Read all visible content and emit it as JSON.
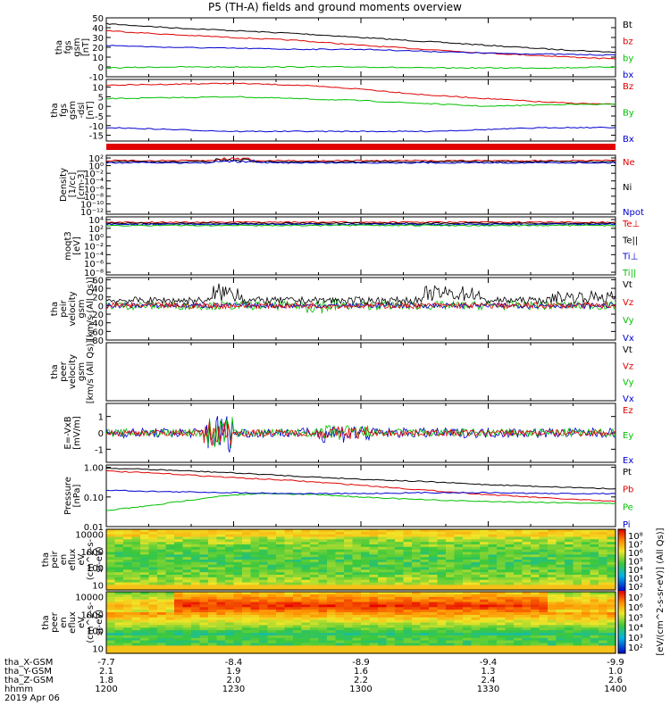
{
  "title": "P5 (TH-A) fields and ground moments overview",
  "colors": {
    "black": "#000000",
    "red": "#e00000",
    "green": "#00c000",
    "blue": "#0000d0"
  },
  "chart_data": [
    {
      "panel": "fgs_gsm",
      "type": "line",
      "ylabel": [
        "tha",
        "fgs",
        "gsm",
        "[nT]"
      ],
      "yticks": [
        "50",
        "40",
        "30",
        "20",
        "10",
        "0",
        "-10"
      ],
      "ylim": [
        -10,
        50
      ],
      "legend": [
        "Bt",
        "bz",
        "by",
        "bx"
      ],
      "series": [
        {
          "name": "Bt",
          "color": "black",
          "x": [
            1200,
            1215,
            1230,
            1245,
            1300,
            1315,
            1330,
            1345,
            1400
          ],
          "y": [
            44,
            40,
            37,
            34,
            30,
            26,
            22,
            18,
            15
          ]
        },
        {
          "name": "bz",
          "color": "red",
          "x": [
            1200,
            1215,
            1230,
            1245,
            1300,
            1315,
            1330,
            1345,
            1400
          ],
          "y": [
            37,
            33,
            30,
            27,
            22,
            18,
            14,
            11,
            8
          ]
        },
        {
          "name": "by",
          "color": "green",
          "x": [
            1200,
            1215,
            1230,
            1245,
            1300,
            1315,
            1330,
            1345,
            1400
          ],
          "y": [
            -1,
            0,
            0,
            0,
            0,
            -1,
            -1,
            -1,
            0
          ]
        },
        {
          "name": "bx",
          "color": "blue",
          "x": [
            1200,
            1215,
            1230,
            1245,
            1300,
            1315,
            1330,
            1345,
            1400
          ],
          "y": [
            22,
            20,
            19,
            18,
            18,
            16,
            14,
            13,
            12
          ]
        }
      ]
    },
    {
      "panel": "fgs_gsm_dsl",
      "type": "line",
      "ylabel": [
        "tha",
        "fgs",
        "gsm",
        "-dsl",
        "[nT]"
      ],
      "yticks": [
        "10",
        "5",
        "0",
        "-5",
        "-10",
        "-15"
      ],
      "ylim": [
        -18,
        14
      ],
      "legend": [
        "Bz",
        "By",
        "Bx"
      ],
      "series": [
        {
          "name": "Bz",
          "color": "red",
          "x": [
            1200,
            1215,
            1230,
            1245,
            1300,
            1315,
            1330,
            1345,
            1400
          ],
          "y": [
            11,
            11.5,
            12,
            11,
            9,
            6,
            4,
            2,
            1
          ]
        },
        {
          "name": "By",
          "color": "green",
          "x": [
            1200,
            1215,
            1230,
            1245,
            1300,
            1315,
            1330,
            1345,
            1400
          ],
          "y": [
            4,
            4.5,
            5,
            4,
            3,
            1.5,
            0,
            1,
            1
          ]
        },
        {
          "name": "Bx",
          "color": "blue",
          "x": [
            1200,
            1215,
            1230,
            1245,
            1300,
            1315,
            1330,
            1345,
            1400
          ],
          "y": [
            -11,
            -12,
            -13,
            -13,
            -13,
            -13,
            -12,
            -11,
            -11
          ]
        }
      ]
    },
    {
      "panel": "density",
      "type": "line",
      "ylabel": [
        "Density",
        "[1/cc]",
        "[cm-3]"
      ],
      "yticks": [
        "10²",
        "10⁰",
        "10⁻²",
        "10⁻⁴",
        "10⁻⁶",
        "10⁻⁸",
        "10⁻¹⁰",
        "10⁻¹²"
      ],
      "legend": [
        "Ne",
        "Ni",
        "Npot"
      ]
    },
    {
      "panel": "temperature",
      "type": "line",
      "ylabel": [
        "moqt3",
        "[eV]"
      ],
      "yticks": [
        "10⁴",
        "10²",
        "10⁰",
        "10⁻²",
        "10⁻⁴",
        "10⁻⁶",
        "10⁻⁸"
      ],
      "legend": [
        "Te⊥",
        "Te||",
        "Ti⊥",
        "Ti||"
      ]
    },
    {
      "panel": "peir_velocity",
      "type": "line",
      "ylabel": [
        "tha",
        "peir",
        "velocity",
        "gsm",
        "[km/s (All Qs)]"
      ],
      "yticks": [
        "60",
        "40",
        "20",
        "0",
        "-20",
        "-40",
        "-60",
        "-80"
      ],
      "ylim": [
        -80,
        65
      ],
      "legend": [
        "Vt",
        "Vz",
        "Vy",
        "Vx"
      ]
    },
    {
      "panel": "peer_velocity",
      "type": "line",
      "ylabel": [
        "tha",
        "peer",
        "velocity",
        "gsm",
        "[km/s (All Qs)]"
      ],
      "legend": [
        "Vt",
        "Vz",
        "Vy",
        "Vx"
      ]
    },
    {
      "panel": "efield",
      "type": "line",
      "ylabel": [
        "E=-VxB",
        "[mV/m]"
      ],
      "yticks": [
        "1",
        "0",
        "-1"
      ],
      "ylim": [
        -1.8,
        1.8
      ],
      "legend": [
        "Ez",
        "Ey",
        "Ex"
      ]
    },
    {
      "panel": "pressure",
      "type": "line",
      "ylabel": [
        "Pressure",
        "[nPa]"
      ],
      "yticks": [
        "1.00",
        "0.10",
        "0.01"
      ],
      "ylim": [
        0.01,
        1.2
      ],
      "log": true,
      "legend": [
        "Pt",
        "Pb",
        "Pe",
        "Pi"
      ],
      "series": [
        {
          "name": "Pt",
          "color": "black",
          "x": [
            1200,
            1215,
            1230,
            1245,
            1300,
            1315,
            1330,
            1345,
            1400
          ],
          "y": [
            0.95,
            0.8,
            0.65,
            0.5,
            0.4,
            0.33,
            0.26,
            0.22,
            0.19
          ]
        },
        {
          "name": "Pb",
          "color": "red",
          "x": [
            1200,
            1215,
            1230,
            1245,
            1300,
            1315,
            1330,
            1345,
            1400
          ],
          "y": [
            0.75,
            0.6,
            0.45,
            0.35,
            0.25,
            0.17,
            0.12,
            0.09,
            0.07
          ]
        },
        {
          "name": "Pe",
          "color": "green",
          "x": [
            1200,
            1210,
            1225,
            1235,
            1250,
            1300,
            1315,
            1330,
            1345,
            1400
          ],
          "y": [
            0.035,
            0.05,
            0.1,
            0.13,
            0.12,
            0.1,
            0.08,
            0.07,
            0.065,
            0.06
          ]
        },
        {
          "name": "Pi",
          "color": "blue",
          "x": [
            1200,
            1215,
            1230,
            1245,
            1300,
            1315,
            1330,
            1345,
            1400
          ],
          "y": [
            0.17,
            0.15,
            0.14,
            0.13,
            0.13,
            0.14,
            0.14,
            0.13,
            0.13
          ]
        }
      ]
    },
    {
      "panel": "peir_en_eflux",
      "type": "heatmap",
      "ylabel": [
        "tha",
        "peir",
        "en",
        "eflux",
        "eV",
        "(cm^2-s-",
        "sr-eV)"
      ],
      "yticks": [
        "10000",
        "1000",
        "100",
        "10"
      ]
    },
    {
      "panel": "peer_en_eflux",
      "type": "heatmap",
      "ylabel": [
        "tha",
        "peer",
        "en",
        "eflux",
        "eV",
        "(cm^2-s-",
        "sr-eV)"
      ],
      "yticks": [
        "10000",
        "1000",
        "100",
        "10"
      ]
    }
  ],
  "colorbar": {
    "label": "[eV/(cm^2-s-sr-eV)] (All Qs)]",
    "ticks_upper": [
      "10⁸",
      "10⁷",
      "10⁶",
      "10⁵",
      "10⁴",
      "10³",
      "10²"
    ],
    "ticks_lower": [
      "10⁷",
      "10⁶",
      "10⁵",
      "10⁴",
      "10³",
      "10²"
    ]
  },
  "footer": {
    "rows": [
      {
        "label": "tha_X-GSM",
        "values": [
          "-7.7",
          "-8.4",
          "-8.9",
          "-9.4",
          "-9.9"
        ]
      },
      {
        "label": "tha_Y-GSM",
        "values": [
          "2.1",
          "1.9",
          "1.6",
          "1.3",
          "1.0"
        ]
      },
      {
        "label": "tha_Z-GSM",
        "values": [
          "1.8",
          "2.0",
          "2.2",
          "2.4",
          "2.6"
        ]
      },
      {
        "label": "hhmm",
        "values": [
          "1200",
          "1230",
          "1300",
          "1330",
          "1400"
        ]
      }
    ],
    "date": "2019 Apr 06"
  }
}
